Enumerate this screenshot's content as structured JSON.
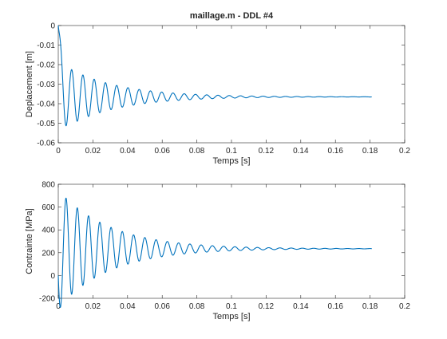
{
  "chart_data": [
    {
      "type": "line",
      "title": "maillage.m - DDL #4",
      "xlabel": "Temps [s]",
      "ylabel": "Deplacement [m]",
      "xlim": [
        0,
        0.2
      ],
      "ylim": [
        -0.06,
        0
      ],
      "xticks": [
        0,
        0.02,
        0.04,
        0.06,
        0.08,
        0.1,
        0.12,
        0.14,
        0.16,
        0.18,
        0.2
      ],
      "xtick_labels": [
        "0",
        "0.02",
        "0.04",
        "0.06",
        "0.08",
        "0.1",
        "0.12",
        "0.14",
        "0.16",
        "0.18",
        "0.2"
      ],
      "yticks": [
        -0.06,
        -0.05,
        -0.04,
        -0.03,
        -0.02,
        -0.01,
        0
      ],
      "ytick_labels": [
        "-0.06",
        "-0.05",
        "-0.04",
        "-0.03",
        "-0.02",
        "-0.01",
        "0"
      ],
      "grid": false,
      "color": "#0072bd",
      "series": [
        {
          "signal": "damped oscillation",
          "x_start": 0,
          "x_end": 0.181,
          "initial_value": 0,
          "steady_value": -0.0365,
          "first_min": -0.052,
          "first_min_time": 0.0045,
          "period": 0.0065,
          "decay_time_constant": 0.03
        }
      ]
    },
    {
      "type": "line",
      "title": "",
      "xlabel": "Temps [s]",
      "ylabel": "Contrainte [MPa]",
      "xlim": [
        0,
        0.2
      ],
      "ylim": [
        -200,
        800
      ],
      "xticks": [
        0,
        0.02,
        0.04,
        0.06,
        0.08,
        0.1,
        0.12,
        0.14,
        0.16,
        0.18,
        0.2
      ],
      "xtick_labels": [
        "0",
        "0.02",
        "0.04",
        "0.06",
        "0.08",
        "0.1",
        "0.12",
        "0.14",
        "0.16",
        "0.18",
        "0.2"
      ],
      "yticks": [
        -200,
        0,
        200,
        400,
        600,
        800
      ],
      "ytick_labels": [
        "-200",
        "0",
        "200",
        "400",
        "600",
        "800"
      ],
      "grid": false,
      "color": "#0072bd",
      "series": [
        {
          "signal": "damped oscillation",
          "x_start": 0,
          "x_end": 0.181,
          "initial_value": 0,
          "steady_value": 235,
          "first_max": 680,
          "first_max_time": 0.0045,
          "period": 0.0065,
          "decay_time_constant": 0.03
        }
      ]
    }
  ]
}
